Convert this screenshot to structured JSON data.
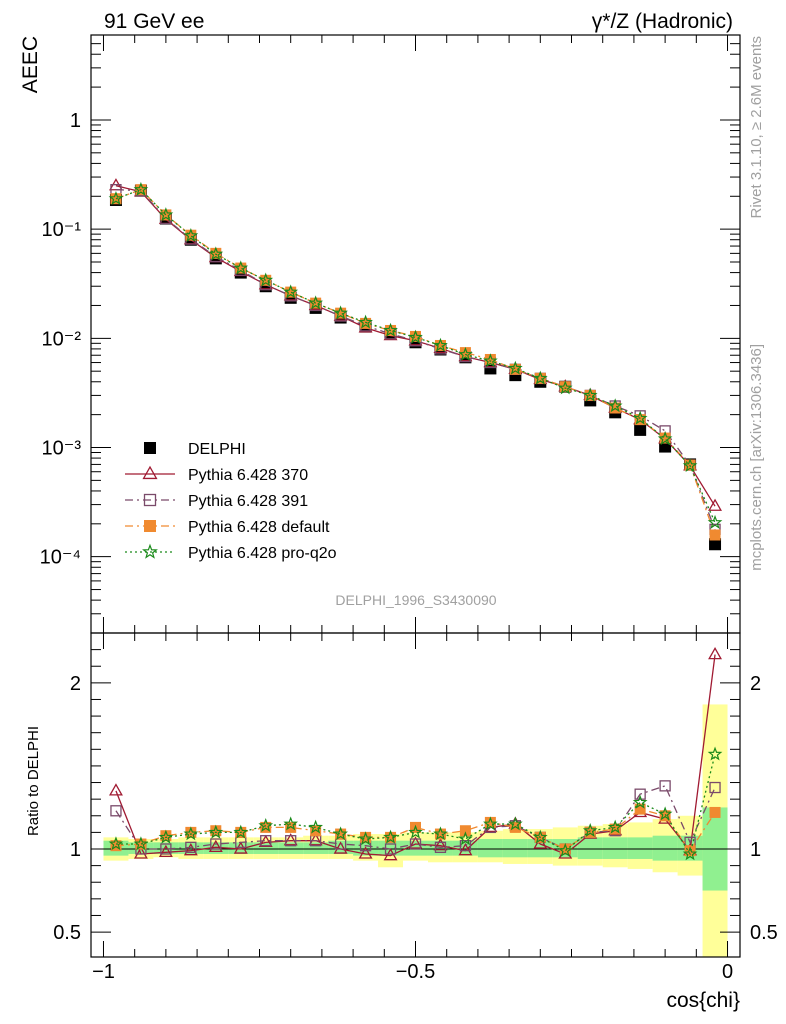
{
  "header": {
    "left": "91 GeV ee",
    "right": "γ*/Z (Hadronic)"
  },
  "side_text": {
    "rivet": "Rivet 3.1.10, ≥ 2.6M events",
    "mcplots": "mcplots.cern.ch [arXiv:1306.3436]"
  },
  "analysis_label": "DELPHI_1996_S3430090",
  "chart_data": [
    {
      "type": "line",
      "panel": "main",
      "ylabel": "AEEC",
      "yscale": "log",
      "ylim": [
        2e-05,
        6
      ],
      "xlim": [
        -1.02,
        0.02
      ],
      "ytick_labels": [
        "10^-4",
        "10^-3",
        "10^-2",
        "10^-1",
        "1"
      ],
      "ytick_values": [
        0.0001,
        0.001,
        0.01,
        0.1,
        1
      ],
      "legend_position": "lower-left",
      "x": [
        -0.98,
        -0.94,
        -0.9,
        -0.86,
        -0.82,
        -0.78,
        -0.74,
        -0.7,
        -0.66,
        -0.62,
        -0.58,
        -0.54,
        -0.5,
        -0.46,
        -0.42,
        -0.38,
        -0.34,
        -0.3,
        -0.26,
        -0.22,
        -0.18,
        -0.14,
        -0.1,
        -0.06,
        -0.02
      ],
      "series": [
        {
          "name": "DELPHI",
          "color": "#000000",
          "marker": "square-filled",
          "line": "none",
          "values": [
            0.185,
            0.225,
            0.125,
            0.08,
            0.054,
            0.04,
            0.03,
            0.0235,
            0.019,
            0.0155,
            0.0128,
            0.011,
            0.0092,
            0.0079,
            0.0067,
            0.0053,
            0.0046,
            0.004,
            0.0036,
            0.0027,
            0.0021,
            0.00145,
            0.00102,
            0.0007,
            0.00013
          ]
        },
        {
          "name": "Pythia 6.428 370",
          "color": "#a01a32",
          "marker": "triangle-open",
          "line": "solid",
          "values": [
            0.25,
            0.22,
            0.123,
            0.08,
            0.055,
            0.041,
            0.031,
            0.0245,
            0.02,
            0.016,
            0.0125,
            0.0106,
            0.0095,
            0.0081,
            0.0068,
            0.006,
            0.0052,
            0.0042,
            0.0036,
            0.003,
            0.0023,
            0.0018,
            0.0012,
            0.00068,
            0.00029
          ]
        },
        {
          "name": "Pythia 6.428 391",
          "color": "#7a4a6a",
          "marker": "square-open",
          "line": "dashdot",
          "values": [
            0.23,
            0.225,
            0.125,
            0.081,
            0.056,
            0.042,
            0.031,
            0.0245,
            0.02,
            0.016,
            0.013,
            0.011,
            0.0095,
            0.008,
            0.0068,
            0.006,
            0.0052,
            0.0043,
            0.0036,
            0.003,
            0.0024,
            0.00195,
            0.00142,
            0.00069,
            0.000178
          ]
        },
        {
          "name": "Pythia 6.428 default",
          "color": "#f08a30",
          "marker": "square-filled",
          "line": "dashdot",
          "values": [
            0.19,
            0.23,
            0.135,
            0.088,
            0.06,
            0.044,
            0.034,
            0.0265,
            0.021,
            0.017,
            0.0137,
            0.0118,
            0.0104,
            0.0086,
            0.0074,
            0.0064,
            0.0052,
            0.0043,
            0.0036,
            0.003,
            0.0023,
            0.0018,
            0.00122,
            0.00069,
            0.000158
          ]
        },
        {
          "name": "Pythia 6.428 pro-q2o",
          "color": "#1a8a1a",
          "marker": "star",
          "line": "dotted",
          "values": [
            0.19,
            0.23,
            0.135,
            0.087,
            0.059,
            0.044,
            0.034,
            0.0265,
            0.021,
            0.017,
            0.014,
            0.0118,
            0.0102,
            0.0086,
            0.0071,
            0.0062,
            0.0053,
            0.0043,
            0.0035,
            0.003,
            0.0024,
            0.00185,
            0.0012,
            0.00068,
            0.000205
          ]
        }
      ]
    },
    {
      "type": "line",
      "panel": "ratio",
      "ylabel": "Ratio to DELPHI",
      "xlabel": "cos{chi}",
      "ylim": [
        0.35,
        2.3
      ],
      "xlim": [
        -1.02,
        0.02
      ],
      "ytick_labels": [
        "0.5",
        "1",
        "2"
      ],
      "ytick_values": [
        0.5,
        1,
        2
      ],
      "xtick_labels": [
        "−1",
        "−0.5",
        "0"
      ],
      "xtick_values": [
        -1,
        -0.5,
        0
      ],
      "band_x_edges": [
        -1.0,
        -0.96,
        -0.92,
        -0.88,
        -0.84,
        -0.8,
        -0.76,
        -0.72,
        -0.68,
        -0.64,
        -0.6,
        -0.56,
        -0.52,
        -0.48,
        -0.44,
        -0.4,
        -0.36,
        -0.32,
        -0.28,
        -0.24,
        -0.2,
        -0.16,
        -0.12,
        -0.08,
        -0.04,
        0.0
      ],
      "band_green": [
        [
          0.96,
          1.05
        ],
        [
          0.97,
          1.04
        ],
        [
          0.97,
          1.04
        ],
        [
          0.97,
          1.04
        ],
        [
          0.97,
          1.04
        ],
        [
          0.97,
          1.04
        ],
        [
          0.97,
          1.04
        ],
        [
          0.97,
          1.04
        ],
        [
          0.97,
          1.04
        ],
        [
          0.97,
          1.05
        ],
        [
          0.96,
          1.05
        ],
        [
          0.96,
          1.05
        ],
        [
          0.96,
          1.05
        ],
        [
          0.96,
          1.05
        ],
        [
          0.96,
          1.05
        ],
        [
          0.95,
          1.06
        ],
        [
          0.95,
          1.06
        ],
        [
          0.95,
          1.06
        ],
        [
          0.95,
          1.06
        ],
        [
          0.94,
          1.07
        ],
        [
          0.94,
          1.07
        ],
        [
          0.94,
          1.07
        ],
        [
          0.93,
          1.08
        ],
        [
          0.93,
          1.08
        ],
        [
          0.75,
          1.25
        ]
      ],
      "band_yellow": [
        [
          0.93,
          1.07
        ],
        [
          0.94,
          1.06
        ],
        [
          0.95,
          1.06
        ],
        [
          0.94,
          1.07
        ],
        [
          0.94,
          1.07
        ],
        [
          0.94,
          1.07
        ],
        [
          0.94,
          1.07
        ],
        [
          0.94,
          1.07
        ],
        [
          0.94,
          1.08
        ],
        [
          0.94,
          1.08
        ],
        [
          0.93,
          1.09
        ],
        [
          0.89,
          1.09
        ],
        [
          0.93,
          1.1
        ],
        [
          0.92,
          1.1
        ],
        [
          0.92,
          1.1
        ],
        [
          0.92,
          1.11
        ],
        [
          0.91,
          1.12
        ],
        [
          0.91,
          1.12
        ],
        [
          0.9,
          1.13
        ],
        [
          0.9,
          1.14
        ],
        [
          0.89,
          1.15
        ],
        [
          0.88,
          1.16
        ],
        [
          0.86,
          1.18
        ],
        [
          0.84,
          1.2
        ],
        [
          0.35,
          1.87
        ]
      ],
      "x": [
        -0.98,
        -0.94,
        -0.9,
        -0.86,
        -0.82,
        -0.78,
        -0.74,
        -0.7,
        -0.66,
        -0.62,
        -0.58,
        -0.54,
        -0.5,
        -0.46,
        -0.42,
        -0.38,
        -0.34,
        -0.3,
        -0.26,
        -0.22,
        -0.18,
        -0.14,
        -0.1,
        -0.06,
        -0.02
      ],
      "series": [
        {
          "name": "Pythia 6.428 370",
          "color": "#a01a32",
          "marker": "triangle-open",
          "line": "solid",
          "values": [
            1.35,
            0.97,
            0.98,
            0.99,
            1.01,
            1.0,
            1.04,
            1.05,
            1.05,
            1.0,
            0.97,
            0.96,
            1.03,
            1.02,
            0.99,
            1.13,
            1.15,
            1.03,
            0.97,
            1.09,
            1.11,
            1.22,
            1.18,
            0.99,
            2.17
          ]
        },
        {
          "name": "Pythia 6.428 391",
          "color": "#7a4a6a",
          "marker": "square-open",
          "line": "dashdot",
          "values": [
            1.23,
            1.0,
            1.0,
            1.01,
            1.03,
            1.04,
            1.05,
            1.05,
            1.05,
            1.03,
            1.02,
            1.0,
            1.03,
            1.01,
            1.02,
            1.13,
            1.14,
            1.07,
            1.0,
            1.1,
            1.11,
            1.33,
            1.38,
            1.04,
            1.37
          ]
        },
        {
          "name": "Pythia 6.428 default",
          "color": "#f08a30",
          "marker": "square-filled",
          "line": "dashdot",
          "values": [
            1.02,
            1.03,
            1.08,
            1.1,
            1.11,
            1.1,
            1.13,
            1.13,
            1.11,
            1.09,
            1.07,
            1.07,
            1.13,
            1.09,
            1.11,
            1.16,
            1.13,
            1.07,
            1.0,
            1.1,
            1.12,
            1.24,
            1.2,
            0.99,
            1.22
          ]
        },
        {
          "name": "Pythia 6.428 pro-q2o",
          "color": "#1a8a1a",
          "marker": "star",
          "line": "dotted",
          "values": [
            1.03,
            1.03,
            1.07,
            1.09,
            1.1,
            1.1,
            1.14,
            1.15,
            1.13,
            1.09,
            1.06,
            1.07,
            1.1,
            1.09,
            1.06,
            1.15,
            1.15,
            1.07,
            0.99,
            1.11,
            1.13,
            1.28,
            1.21,
            0.97,
            1.57
          ]
        }
      ]
    }
  ]
}
